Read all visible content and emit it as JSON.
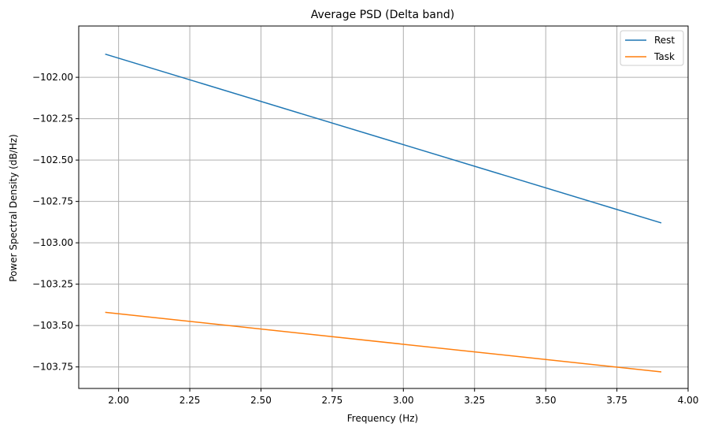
{
  "chart_data": {
    "type": "line",
    "title": "Average PSD (Delta band)",
    "xlabel": "Frequency (Hz)",
    "ylabel": "Power Spectral Density (dB/Hz)",
    "xlim": [
      1.86,
      4.0
    ],
    "ylim": [
      -103.88,
      -101.69
    ],
    "x_ticks": [
      2.0,
      2.25,
      2.5,
      2.75,
      3.0,
      3.25,
      3.5,
      3.75,
      4.0
    ],
    "x_tick_labels": [
      "2.00",
      "2.25",
      "2.50",
      "2.75",
      "3.00",
      "3.25",
      "3.50",
      "3.75",
      "4.00"
    ],
    "y_ticks": [
      -102.0,
      -102.25,
      -102.5,
      -102.75,
      -103.0,
      -103.25,
      -103.5,
      -103.75
    ],
    "y_tick_labels": [
      "−102.00",
      "−102.25",
      "−102.50",
      "−102.75",
      "−103.00",
      "−103.25",
      "−103.50",
      "−103.75"
    ],
    "grid": true,
    "legend_position": "top-right",
    "series": [
      {
        "name": "Rest",
        "color": "#1f77b4",
        "x": [
          1.953,
          3.906
        ],
        "y": [
          -101.86,
          -102.88
        ]
      },
      {
        "name": "Task",
        "color": "#ff7f0e",
        "x": [
          1.953,
          3.906
        ],
        "y": [
          -103.42,
          -103.78
        ]
      }
    ]
  }
}
